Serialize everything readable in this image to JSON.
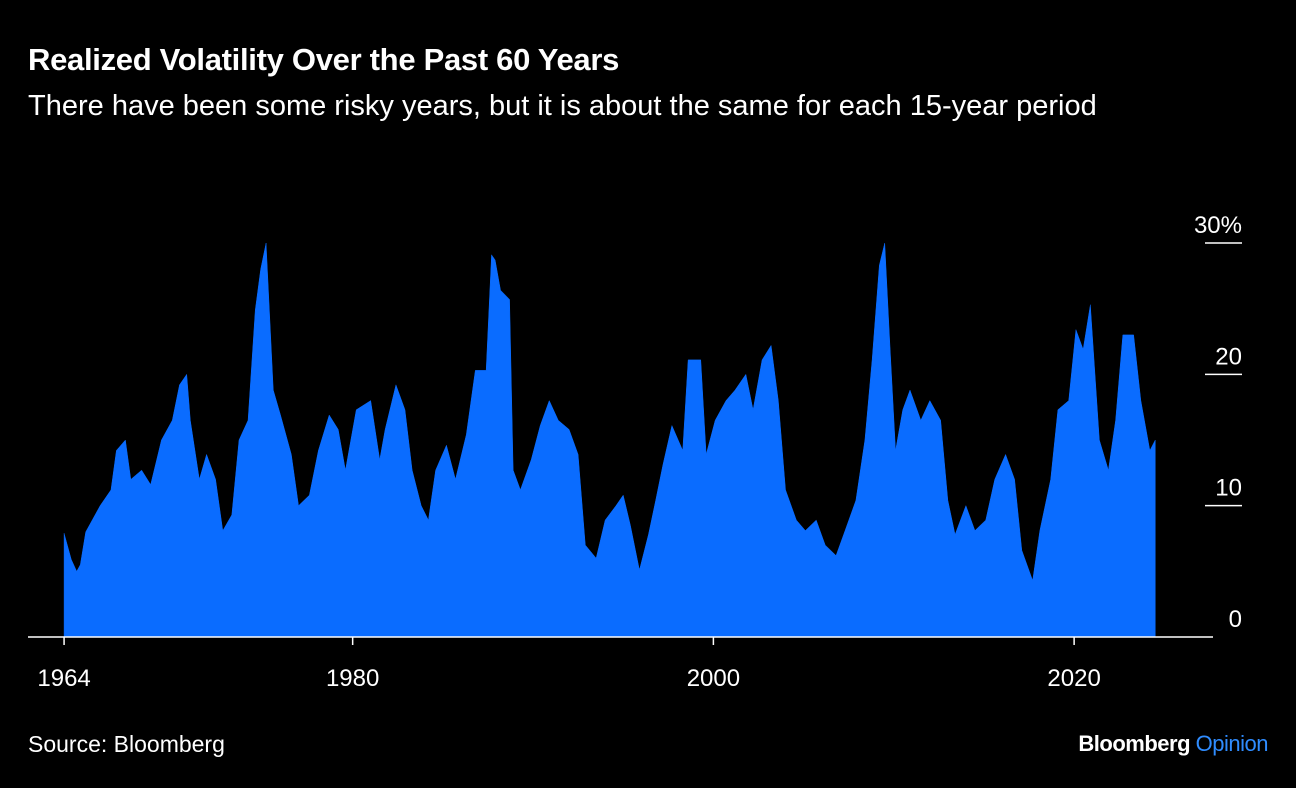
{
  "chart_data": {
    "type": "area",
    "title": "Realized Volatility Over the Past 60 Years",
    "subtitle": "There have been some risky years, but it is about the same for each 15-year period",
    "source": "Source: Bloomberg",
    "brand": [
      "Bloomberg",
      "Opinion"
    ],
    "xlim": [
      1962,
      2027.7
    ],
    "xticks": [
      1964,
      1980,
      2000,
      2020
    ],
    "ylim": [
      0,
      30
    ],
    "yticks": [
      0,
      10,
      20,
      {
        "value": 30,
        "label": "30%"
      }
    ],
    "x": [
      1964.0,
      1964.4,
      1964.7,
      1964.9,
      1965.2,
      1966.0,
      1966.6,
      1966.9,
      1967.4,
      1967.7,
      1968.3,
      1968.8,
      1969.4,
      1970.0,
      1970.4,
      1970.8,
      1971.0,
      1971.5,
      1971.9,
      1972.4,
      1972.8,
      1973.3,
      1973.7,
      1974.2,
      1974.6,
      1974.9,
      1975.2,
      1975.6,
      1976.0,
      1976.6,
      1977.0,
      1977.6,
      1978.1,
      1978.7,
      1979.2,
      1979.6,
      1980.2,
      1981.0,
      1981.5,
      1981.8,
      1982.4,
      1982.9,
      1983.3,
      1983.8,
      1984.2,
      1984.6,
      1985.2,
      1985.7,
      1986.3,
      1986.8,
      1987.4,
      1987.7,
      1987.9,
      1988.2,
      1988.7,
      1988.9,
      1989.3,
      1989.9,
      1990.4,
      1990.9,
      1991.4,
      1992.0,
      1992.5,
      1992.9,
      1993.5,
      1994.0,
      1994.6,
      1995.0,
      1995.4,
      1995.9,
      1996.4,
      1996.8,
      1997.2,
      1997.7,
      1998.3,
      1998.6,
      1999.3,
      1999.6,
      2000.1,
      2000.7,
      2001.2,
      2001.8,
      2002.2,
      2002.7,
      2003.2,
      2003.6,
      2004.0,
      2004.6,
      2005.1,
      2005.7,
      2006.2,
      2006.8,
      2007.3,
      2007.9,
      2008.4,
      2008.8,
      2009.2,
      2009.5,
      2009.8,
      2010.1,
      2010.5,
      2010.9,
      2011.5,
      2012.0,
      2012.6,
      2013.0,
      2013.4,
      2014.0,
      2014.5,
      2015.1,
      2015.6,
      2016.2,
      2016.7,
      2017.1,
      2017.7,
      2018.1,
      2018.7,
      2019.1,
      2019.7,
      2020.1,
      2020.5,
      2020.9,
      2021.4,
      2021.9,
      2022.3,
      2022.7,
      2023.3,
      2023.7,
      2024.2,
      2024.5
    ],
    "series": [
      {
        "color": "#0a6cff",
        "values": [
          7.9,
          5.9,
          5.0,
          5.5,
          8.0,
          10.0,
          11.2,
          14.2,
          15.0,
          12.0,
          12.7,
          11.6,
          15.0,
          16.5,
          19.2,
          20.0,
          16.5,
          12.0,
          13.9,
          12.0,
          8.1,
          9.3,
          15.0,
          16.5,
          24.9,
          28.0,
          30.0,
          18.8,
          16.9,
          13.9,
          10.0,
          10.8,
          14.2,
          16.9,
          15.8,
          12.7,
          17.3,
          18.0,
          13.5,
          15.8,
          19.2,
          17.3,
          12.7,
          10.0,
          8.9,
          12.7,
          14.6,
          12.0,
          15.4,
          20.3,
          20.3,
          29.1,
          28.7,
          26.4,
          25.7,
          12.7,
          11.2,
          13.5,
          16.1,
          18.0,
          16.5,
          15.8,
          13.9,
          7.0,
          6.0,
          8.9,
          10.0,
          10.8,
          8.5,
          5.1,
          7.8,
          10.4,
          13.1,
          16.1,
          14.2,
          21.1,
          21.1,
          13.9,
          16.5,
          18.0,
          18.8,
          20.0,
          17.3,
          21.1,
          22.2,
          18.0,
          11.2,
          8.9,
          8.1,
          8.9,
          7.0,
          6.2,
          8.1,
          10.4,
          15.0,
          21.1,
          28.3,
          30.0,
          21.9,
          14.2,
          17.3,
          18.8,
          16.5,
          18.0,
          16.5,
          10.4,
          7.8,
          10.0,
          8.1,
          8.9,
          12.0,
          13.9,
          12.0,
          6.6,
          4.3,
          8.1,
          12.0,
          17.3,
          18.0,
          23.4,
          21.9,
          25.3,
          15.0,
          12.7,
          16.5,
          23.0,
          23.0,
          18.0,
          14.2,
          15.0
        ]
      }
    ]
  }
}
